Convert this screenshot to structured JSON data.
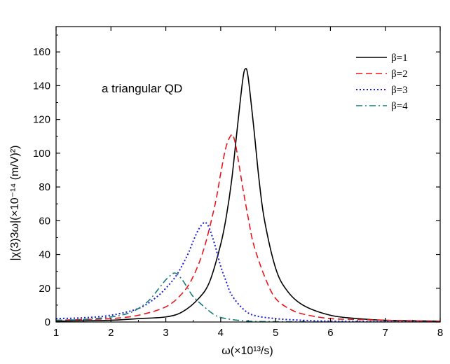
{
  "chart_data": {
    "type": "line",
    "title": "",
    "annotation": "a triangular QD",
    "xlabel": "ω(×10¹³/s)",
    "ylabel": "|χ(3)3ω|(×10⁻¹⁴ (m/V)²)",
    "xlim": [
      1,
      8
    ],
    "ylim": [
      0,
      175
    ],
    "x_ticks": [
      1,
      2,
      3,
      4,
      5,
      6,
      7,
      8
    ],
    "y_ticks": [
      0,
      20,
      40,
      60,
      80,
      100,
      120,
      140,
      160
    ],
    "grid": false,
    "legend_position": "top-right",
    "series": [
      {
        "name": "β=1",
        "color": "#000000",
        "dash": "solid",
        "x": [
          1.0,
          1.5,
          2.0,
          2.5,
          3.0,
          3.3,
          3.6,
          3.8,
          4.0,
          4.1,
          4.2,
          4.3,
          4.4,
          4.45,
          4.5,
          4.6,
          4.7,
          4.8,
          5.0,
          5.2,
          5.5,
          6.0,
          6.5,
          7.0,
          8.0
        ],
        "y": [
          0.5,
          0.7,
          1,
          2,
          3,
          6,
          14,
          24,
          46,
          62,
          84,
          114,
          143,
          150,
          145,
          116,
          84,
          60,
          32,
          19,
          10,
          4,
          2,
          1,
          0.5
        ]
      },
      {
        "name": "β=2",
        "color": "#e8161b",
        "dash": "dashed",
        "x": [
          1.0,
          1.5,
          2.0,
          2.5,
          3.0,
          3.3,
          3.5,
          3.7,
          3.9,
          4.0,
          4.1,
          4.2,
          4.25,
          4.3,
          4.4,
          4.5,
          4.6,
          4.8,
          5.0,
          5.3,
          5.6,
          6.0,
          6.5,
          7.0,
          8.0
        ],
        "y": [
          1,
          1.5,
          2,
          4,
          9,
          17,
          27,
          44,
          70,
          88,
          104,
          111,
          108,
          100,
          80,
          62,
          46,
          27,
          14,
          7,
          4,
          2,
          1.5,
          1,
          0.5
        ]
      },
      {
        "name": "β=3",
        "color": "#1a1adb",
        "dash": "dotted",
        "x": [
          1.0,
          1.5,
          2.0,
          2.5,
          2.8,
          3.0,
          3.2,
          3.4,
          3.5,
          3.6,
          3.7,
          3.75,
          3.8,
          3.9,
          4.0,
          4.1,
          4.2,
          4.4,
          4.6,
          5.0,
          5.5,
          6.0,
          7.0,
          8.0
        ],
        "y": [
          2,
          2.5,
          4,
          8,
          14,
          20,
          28,
          40,
          48,
          55,
          59,
          58,
          55,
          45,
          33,
          24,
          16,
          8,
          4,
          2,
          1,
          0.5,
          0.2,
          0
        ]
      },
      {
        "name": "β=4",
        "color": "#167a7a",
        "dash": "dashdot",
        "x": [
          1.0,
          1.5,
          2.0,
          2.3,
          2.5,
          2.7,
          2.9,
          3.0,
          3.1,
          3.15,
          3.2,
          3.3,
          3.4,
          3.5,
          3.7,
          3.9,
          4.1,
          4.5,
          5.0,
          6.0,
          7.0,
          8.0
        ],
        "y": [
          1,
          1.5,
          3,
          5,
          8,
          13,
          21,
          25,
          28,
          29,
          28.5,
          25,
          20,
          15,
          9,
          4,
          2,
          0.5,
          0.2,
          0,
          0,
          0
        ]
      }
    ]
  }
}
